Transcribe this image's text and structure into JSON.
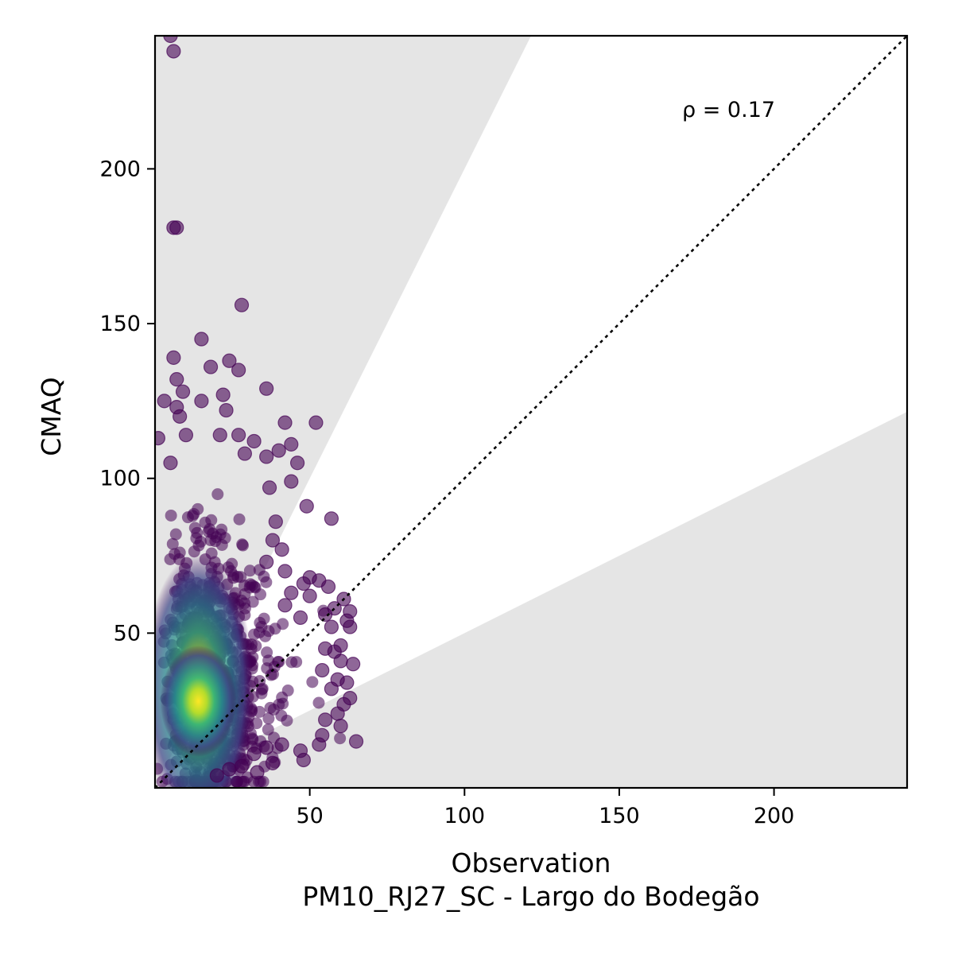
{
  "chart_data": {
    "type": "scatter",
    "title": "",
    "xlabel": "Observation",
    "xlabel_secondary": "PM10_RJ27_SC - Largo do Bodegão",
    "ylabel": "CMAQ",
    "xlim": [
      0,
      243
    ],
    "ylim": [
      0,
      243
    ],
    "x_ticks": [
      50,
      100,
      150,
      200
    ],
    "y_ticks": [
      50,
      100,
      150,
      200
    ],
    "x_tick_labels": [
      "50",
      "100",
      "150",
      "200"
    ],
    "y_tick_labels": [
      "50",
      "100",
      "150",
      "200"
    ],
    "annotation": "ρ = 0.17",
    "identity_line": {
      "style": "dotted",
      "color": "#000000"
    },
    "shaded_region": {
      "description": "outside factor-of-2 band",
      "upper_slope": 2.0,
      "lower_slope": 0.5,
      "color": "#e5e5e5"
    },
    "colormap": "viridis",
    "density_core": {
      "x": 14,
      "y": 28
    },
    "outlier_points": [
      {
        "x": 5,
        "y": 243
      },
      {
        "x": 6,
        "y": 238
      },
      {
        "x": 6,
        "y": 181
      },
      {
        "x": 7,
        "y": 181
      },
      {
        "x": 28,
        "y": 156
      },
      {
        "x": 15,
        "y": 145
      },
      {
        "x": 6,
        "y": 139
      },
      {
        "x": 24,
        "y": 138
      },
      {
        "x": 18,
        "y": 136
      },
      {
        "x": 27,
        "y": 135
      },
      {
        "x": 7,
        "y": 132
      },
      {
        "x": 36,
        "y": 129
      },
      {
        "x": 9,
        "y": 128
      },
      {
        "x": 22,
        "y": 127
      },
      {
        "x": 3,
        "y": 125
      },
      {
        "x": 15,
        "y": 125
      },
      {
        "x": 7,
        "y": 123
      },
      {
        "x": 23,
        "y": 122
      },
      {
        "x": 8,
        "y": 120
      },
      {
        "x": 42,
        "y": 118
      },
      {
        "x": 52,
        "y": 118
      },
      {
        "x": 1,
        "y": 113
      },
      {
        "x": 10,
        "y": 114
      },
      {
        "x": 21,
        "y": 114
      },
      {
        "x": 27,
        "y": 114
      },
      {
        "x": 32,
        "y": 112
      },
      {
        "x": 44,
        "y": 111
      },
      {
        "x": 40,
        "y": 109
      },
      {
        "x": 29,
        "y": 108
      },
      {
        "x": 36,
        "y": 107
      },
      {
        "x": 46,
        "y": 105
      },
      {
        "x": 5,
        "y": 105
      },
      {
        "x": 44,
        "y": 99
      },
      {
        "x": 37,
        "y": 97
      },
      {
        "x": 49,
        "y": 91
      },
      {
        "x": 57,
        "y": 87
      },
      {
        "x": 39,
        "y": 86
      },
      {
        "x": 38,
        "y": 80
      },
      {
        "x": 41,
        "y": 77
      },
      {
        "x": 36,
        "y": 73
      },
      {
        "x": 42,
        "y": 70
      },
      {
        "x": 50,
        "y": 68
      },
      {
        "x": 53,
        "y": 67
      },
      {
        "x": 48,
        "y": 66
      },
      {
        "x": 56,
        "y": 65
      },
      {
        "x": 44,
        "y": 63
      },
      {
        "x": 50,
        "y": 62
      },
      {
        "x": 61,
        "y": 61
      },
      {
        "x": 42,
        "y": 59
      },
      {
        "x": 58,
        "y": 58
      },
      {
        "x": 63,
        "y": 57
      },
      {
        "x": 55,
        "y": 56
      },
      {
        "x": 47,
        "y": 55
      },
      {
        "x": 62,
        "y": 54
      },
      {
        "x": 57,
        "y": 52
      },
      {
        "x": 63,
        "y": 52
      },
      {
        "x": 60,
        "y": 46
      },
      {
        "x": 55,
        "y": 45
      },
      {
        "x": 58,
        "y": 44
      },
      {
        "x": 60,
        "y": 41
      },
      {
        "x": 64,
        "y": 40
      },
      {
        "x": 54,
        "y": 38
      },
      {
        "x": 59,
        "y": 35
      },
      {
        "x": 62,
        "y": 34
      },
      {
        "x": 57,
        "y": 32
      },
      {
        "x": 63,
        "y": 29
      },
      {
        "x": 61,
        "y": 27
      },
      {
        "x": 59,
        "y": 24
      },
      {
        "x": 55,
        "y": 22
      },
      {
        "x": 60,
        "y": 20
      },
      {
        "x": 65,
        "y": 15
      },
      {
        "x": 54,
        "y": 17
      },
      {
        "x": 53,
        "y": 14
      },
      {
        "x": 47,
        "y": 12
      },
      {
        "x": 41,
        "y": 14
      },
      {
        "x": 36,
        "y": 13
      },
      {
        "x": 32,
        "y": 11
      },
      {
        "x": 48,
        "y": 9
      },
      {
        "x": 38,
        "y": 8
      },
      {
        "x": 28,
        "y": 7
      },
      {
        "x": 24,
        "y": 6
      },
      {
        "x": 33,
        "y": 5
      },
      {
        "x": 20,
        "y": 4
      }
    ]
  }
}
